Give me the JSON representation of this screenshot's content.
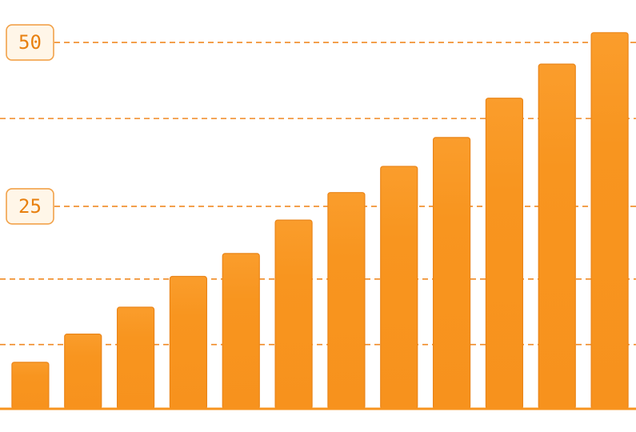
{
  "chart_data": {
    "type": "bar",
    "values": [
      1.2,
      5.5,
      9.6,
      14.3,
      17.8,
      22.9,
      27.1,
      31.1,
      35.5,
      41.5,
      46.7,
      51.5
    ],
    "color": "#f7931e",
    "ylim": [
      -5.9,
      51.6
    ],
    "yticks": [
      50,
      25
    ],
    "minor_grid": [
      38.4,
      13.9,
      3.9
    ],
    "grid": true
  }
}
